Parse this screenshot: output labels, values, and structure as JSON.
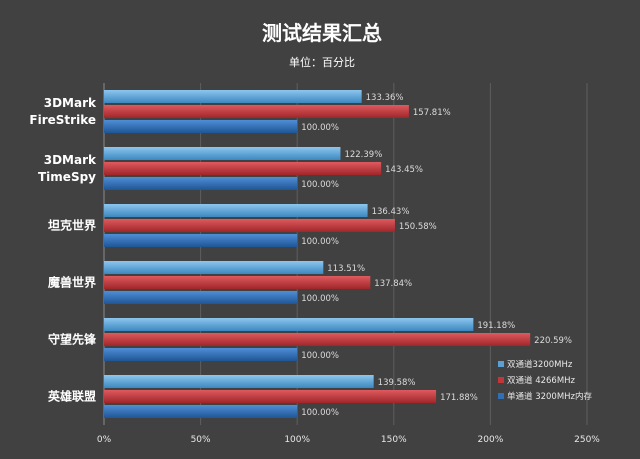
{
  "chart_data": {
    "type": "bar",
    "orientation": "horizontal",
    "title": "测试结果汇总",
    "subtitle": "单位：百分比",
    "categories": [
      [
        "3DMark",
        "FireStrike"
      ],
      [
        "3DMark",
        "TimeSpy"
      ],
      [
        "坦克世界"
      ],
      [
        "魔兽世界"
      ],
      [
        "守望先锋"
      ],
      [
        "英雄联盟"
      ]
    ],
    "series": [
      {
        "name": "双通道3200MHz",
        "color": "#5aa0d2",
        "values": [
          133.36,
          122.39,
          136.43,
          113.51,
          191.18,
          139.58
        ],
        "labels": [
          "133.36%",
          "122.39%",
          "136.43%",
          "113.51%",
          "191.18%",
          "139.58%"
        ]
      },
      {
        "name": "双通道 4266MHz",
        "color": "#c0363a",
        "values": [
          157.81,
          143.45,
          150.58,
          137.84,
          220.59,
          171.88
        ],
        "labels": [
          "157.81%",
          "143.45%",
          "150.58%",
          "137.84%",
          "220.59%",
          "171.88%"
        ]
      },
      {
        "name": "单通道 3200MHz内存",
        "color": "#2f6fb8",
        "values": [
          100,
          100,
          100,
          100,
          100,
          100
        ],
        "labels": [
          "100.00%",
          "100.00%",
          "100.00%",
          "100.00%",
          "100.00%",
          "100.00%"
        ]
      }
    ],
    "xlim": [
      0,
      250
    ],
    "xticks": [
      0,
      50,
      100,
      150,
      200,
      250
    ],
    "xtick_labels": [
      "0%",
      "50%",
      "100%",
      "150%",
      "200%",
      "250%"
    ],
    "grid": true,
    "legend_position": "bottom-right"
  }
}
